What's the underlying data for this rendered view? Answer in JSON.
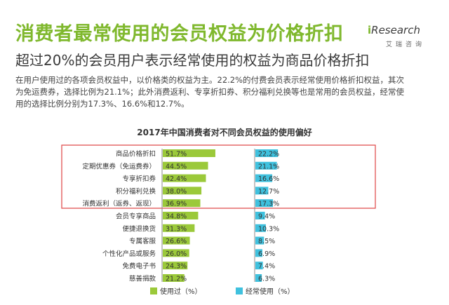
{
  "header": {
    "title": "消费者最常使用的会员权益为价格折扣",
    "subtitle": "超过20%的会员用户表示经常使用的权益为商品价格折扣",
    "description": "在用户使用过的各项会员权益中，以价格类的权益为主。22.2%的付费会员表示经常使用价格折扣权益，其次为免运费券，选择比例为21.1%；此外消费返利、专享折扣券、积分福利兑换等也是常用的会员权益，经常使用的选择比例分别为17.3%、16.6%和12.7%。"
  },
  "logo": {
    "text_i": "i",
    "text_main": "Research",
    "text_sub": "艾瑞咨询"
  },
  "colors": {
    "used": "#9bc93a",
    "often": "#3fc1de",
    "highlight_border": "#e05050",
    "title_green": "#7fb82d"
  },
  "chart_data": {
    "type": "bar",
    "title": "2017年中国消费者对不同会员权益的使用偏好",
    "categories": [
      "商品价格折扣",
      "定期优惠券（免运费券）",
      "专享折扣券",
      "积分福利兑换",
      "消费返利（返券、返现）",
      "会员专享商品",
      "便捷退换货",
      "专属客服",
      "个性化产品或服务",
      "免费电子书",
      "慈善捐款"
    ],
    "series": [
      {
        "name": "使用过（%）",
        "values": [
          51.7,
          44.5,
          42.4,
          38.0,
          36.9,
          34.8,
          31.3,
          26.6,
          26.0,
          24.3,
          21.2
        ],
        "labels": [
          "51.7%",
          "44.5%",
          "42.4%",
          "38.0%",
          "36.9%",
          "34.8%",
          "31.3%",
          "26.6%",
          "26.0%",
          "24.3%",
          "21.2%"
        ]
      },
      {
        "name": "经常使用（%）",
        "values": [
          22.2,
          21.1,
          16.6,
          12.7,
          17.3,
          9.4,
          10.3,
          8.5,
          6.9,
          7.4,
          6.3
        ],
        "labels": [
          "22.2%",
          "21.1%",
          "16.6%",
          "12.7%",
          "17.3%",
          "9.4%",
          "10.3%",
          "8.5%",
          "6.9%",
          "7.4%",
          "6.3%"
        ]
      }
    ],
    "highlighted_count": 5,
    "legend_position": "bottom"
  }
}
